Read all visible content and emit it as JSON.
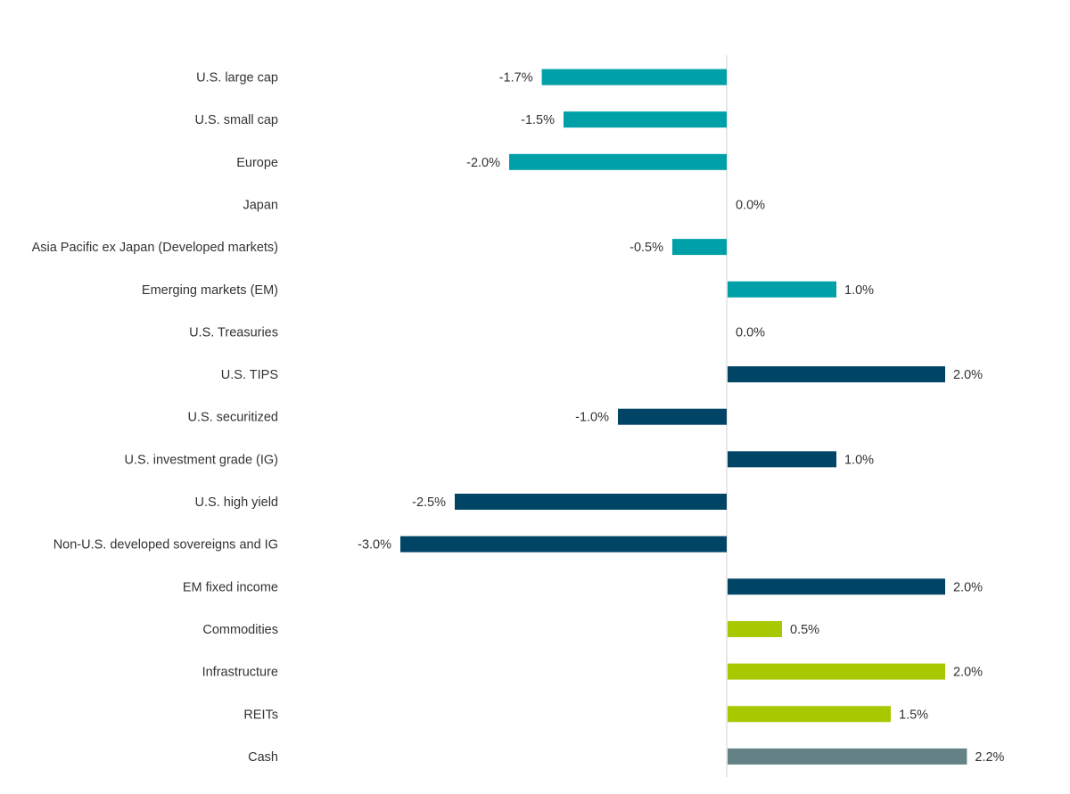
{
  "chart_data": {
    "type": "bar",
    "orientation": "horizontal",
    "categories": [
      "U.S. large cap",
      "U.S. small cap",
      "Europe",
      "Japan",
      "Asia Pacific ex Japan (Developed markets)",
      "Emerging markets (EM)",
      "U.S. Treasuries",
      "U.S. TIPS",
      "U.S. securitized",
      "U.S. investment grade (IG)",
      "U.S. high yield",
      "Non-U.S. developed sovereigns and IG",
      "EM fixed income",
      "Commodities",
      "Infrastructure",
      "REITs",
      "Cash"
    ],
    "values": [
      -1.7,
      -1.5,
      -2.0,
      0.0,
      -0.5,
      1.0,
      0.0,
      2.0,
      -1.0,
      1.0,
      -2.5,
      -3.0,
      2.0,
      0.5,
      2.0,
      1.5,
      2.2
    ],
    "value_labels": [
      "-1.7%",
      "-1.5%",
      "-2.0%",
      "0.0%",
      "-0.5%",
      "1.0%",
      "0.0%",
      "2.0%",
      "-1.0%",
      "1.0%",
      "-2.5%",
      "-3.0%",
      "2.0%",
      "0.5%",
      "2.0%",
      "1.5%",
      "2.2%"
    ],
    "bar_colors": [
      "#00A0A8",
      "#00A0A8",
      "#00A0A8",
      "#00A0A8",
      "#00A0A8",
      "#00A0A8",
      "#004466",
      "#004466",
      "#004466",
      "#004466",
      "#004466",
      "#004466",
      "#004466",
      "#A8C800",
      "#A8C800",
      "#A8C800",
      "#648286"
    ],
    "xlim": [
      -3.0,
      2.2
    ],
    "grid": false,
    "title": "",
    "xlabel": "",
    "ylabel": ""
  }
}
